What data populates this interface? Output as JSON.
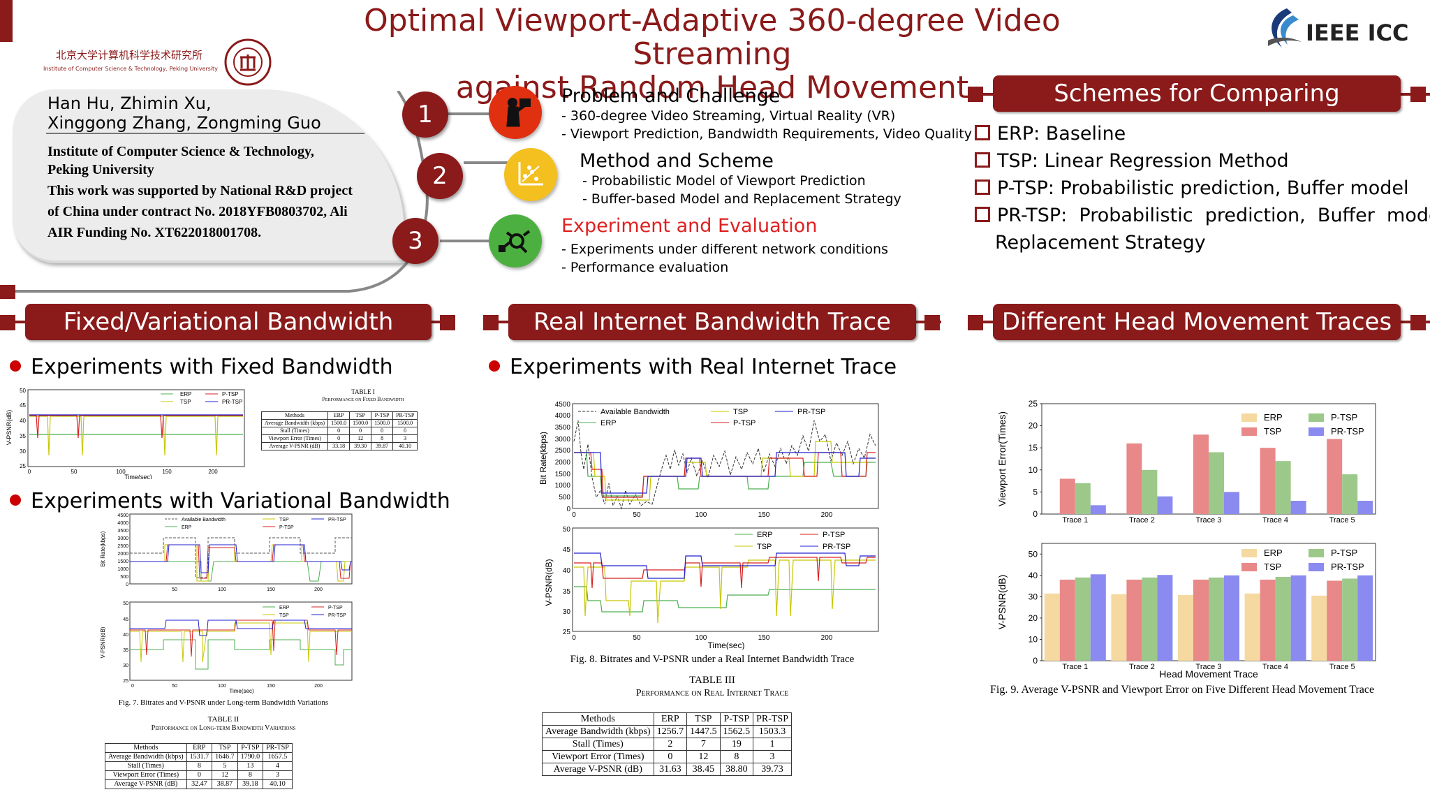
{
  "title_line1": "Optimal Viewport-Adaptive 360-degree Video Streaming",
  "title_line2": "against Random Head Movement",
  "institute_cn": "北京大学计算机科学技术研究所",
  "institute_en_small": "Institute of Computer Science & Technology, Peking University",
  "conference": "IEEE ICC",
  "authors_line1": "Han Hu, Zhimin Xu,",
  "authors_line2": "Xinggong Zhang, Zongming Guo",
  "affil_line1": "Institute of Computer Science & Technology,",
  "affil_line2": "Peking University",
  "support": "This work was supported by National R&D project of China under contract No. 2018YFB0803702, Ali AIR Funding No. XT622018001708.",
  "steps": [
    {
      "num": "1",
      "heading": "Problem and Challenge",
      "lines": [
        "- 360-degree Video Streaming, Virtual Reality (VR)",
        "- Viewport Prediction, Bandwidth Requirements, Video Quality"
      ]
    },
    {
      "num": "2",
      "heading": "Method and Scheme",
      "lines": [
        "-  Probabilistic Model of Viewport Prediction",
        "-  Buffer-based Model and Replacement Strategy"
      ]
    },
    {
      "num": "3",
      "heading": "Experiment and Evaluation",
      "lines": [
        "-  Experiments under different network conditions",
        "-  Performance evaluation"
      ]
    }
  ],
  "schemes_banner": "Schemes for Comparing",
  "schemes": [
    {
      "name": "ERP",
      "desc": ": Baseline"
    },
    {
      "name": "TSP",
      "desc": ": Linear Regression Method"
    },
    {
      "name": "P-TSP",
      "desc": ": Probabilistic prediction, Buffer model"
    },
    {
      "name": "PR-TSP",
      "desc": ":  Probabilistic  prediction,  Buffer  model,"
    }
  ],
  "schemes_cont": "Replacement Strategy",
  "banners": {
    "left": "Fixed/Variational Bandwidth",
    "mid": "Real Internet Bandwidth Trace",
    "right": "Different Head Movement Traces"
  },
  "bullets": {
    "fixed": "Experiments with Fixed Bandwidth",
    "variational": "Experiments with Variational Bandwidth",
    "real": "Experiments with Real Internet Trace"
  },
  "legend": {
    "erp": "ERP",
    "tsp": "TSP",
    "ptsp": "P-TSP",
    "prtsp": "PR-TSP",
    "avail": "Available Bandwidth"
  },
  "axes": {
    "time": "Time(sec)",
    "vpsnr": "V-PSNR(dB)",
    "bitrate": "Bit Rate(kbps)",
    "verror": "Viewport Error(Times)",
    "hmt": "Head Movement Trace"
  },
  "colors": {
    "erp": "#4caf50",
    "tsp": "#c8c800",
    "ptsp": "#d62020",
    "prtsp": "#2020d0",
    "avail": "#333333",
    "accent": "#8b1a1a"
  },
  "table1": {
    "title": "TABLE I",
    "subtitle": "Performance on Fixed Bandwidth",
    "header": [
      "Methods",
      "ERP",
      "TSP",
      "P-TSP",
      "PR-TSP"
    ],
    "rows": [
      [
        "Average Bandwidth (kbps)",
        "1500.0",
        "1500.0",
        "1500.0",
        "1500.0"
      ],
      [
        "Stall (Times)",
        "0",
        "0",
        "0",
        "0"
      ],
      [
        "Viewport Error (Times)",
        "0",
        "12",
        "8",
        "3"
      ],
      [
        "Average V-PSNR (dB)",
        "33.18",
        "39.30",
        "39.87",
        "40.10"
      ]
    ]
  },
  "table2": {
    "title": "TABLE II",
    "subtitle": "Performance on Long-term Bandwidth Variations",
    "header": [
      "Methods",
      "ERP",
      "TSP",
      "P-TSP",
      "PR-TSP"
    ],
    "rows": [
      [
        "Average Bandwidth (kbps)",
        "1531.7",
        "1646.7",
        "1790.0",
        "1657.5"
      ],
      [
        "Stall (Times)",
        "8",
        "5",
        "13",
        "4"
      ],
      [
        "Viewport Error (Times)",
        "0",
        "12",
        "8",
        "3"
      ],
      [
        "Average V-PSNR (dB)",
        "32.47",
        "38.87",
        "39.18",
        "40.10"
      ]
    ]
  },
  "table3": {
    "title": "TABLE III",
    "subtitle": "Performance on Real Internet Trace",
    "header": [
      "Methods",
      "ERP",
      "TSP",
      "P-TSP",
      "PR-TSP"
    ],
    "rows": [
      [
        "Average Bandwidth (kbps)",
        "1256.7",
        "1447.5",
        "1562.5",
        "1503.3"
      ],
      [
        "Stall (Times)",
        "2",
        "7",
        "19",
        "1"
      ],
      [
        "Viewport Error (Times)",
        "0",
        "12",
        "8",
        "3"
      ],
      [
        "Average V-PSNR (dB)",
        "31.63",
        "38.45",
        "38.80",
        "39.73"
      ]
    ]
  },
  "fig7_caption": "Fig. 7.  Bitrates and V-PSNR under Long-term Bandwidth Variations",
  "fig8_caption": "Fig. 8.  Bitrates and V-PSNR under a Real Internet Bandwidth Trace",
  "fig9_caption": "Fig. 9.   Average  V-PSNR  and  Viewport  Error  on  Five  Different  Head Movement Trace",
  "chart_data": [
    {
      "type": "bar",
      "categories": [
        "Trace 1",
        "Trace 2",
        "Trace 3",
        "Trace 4",
        "Trace 5"
      ],
      "series": [
        {
          "name": "ERP",
          "values": [
            0,
            0,
            0,
            0,
            0
          ]
        },
        {
          "name": "TSP",
          "values": [
            8,
            16,
            18,
            15,
            17
          ]
        },
        {
          "name": "P-TSP",
          "values": [
            7,
            10,
            14,
            12,
            9
          ]
        },
        {
          "name": "PR-TSP",
          "values": [
            2,
            4,
            5,
            3,
            3
          ]
        }
      ],
      "ylabel": "Viewport Error(Times)",
      "ylim": [
        0,
        25
      ],
      "yticks": [
        0,
        5,
        10,
        15,
        20,
        25
      ]
    },
    {
      "type": "bar",
      "categories": [
        "Trace 1",
        "Trace 2",
        "Trace 3",
        "Trace 4",
        "Trace 5"
      ],
      "series": [
        {
          "name": "ERP",
          "values": [
            31.5,
            31.2,
            30.8,
            31.5,
            30.5
          ]
        },
        {
          "name": "TSP",
          "values": [
            38,
            38,
            38,
            38,
            37.5
          ]
        },
        {
          "name": "P-TSP",
          "values": [
            39,
            39,
            39,
            39.3,
            38.5
          ]
        },
        {
          "name": "PR-TSP",
          "values": [
            40.5,
            40.2,
            40,
            40,
            40
          ]
        }
      ],
      "xlabel": "Head Movement Trace",
      "ylabel": "V-PSNR(dB)",
      "ylim": [
        0,
        55
      ],
      "yticks": [
        0,
        10,
        20,
        30,
        40,
        50
      ]
    }
  ]
}
